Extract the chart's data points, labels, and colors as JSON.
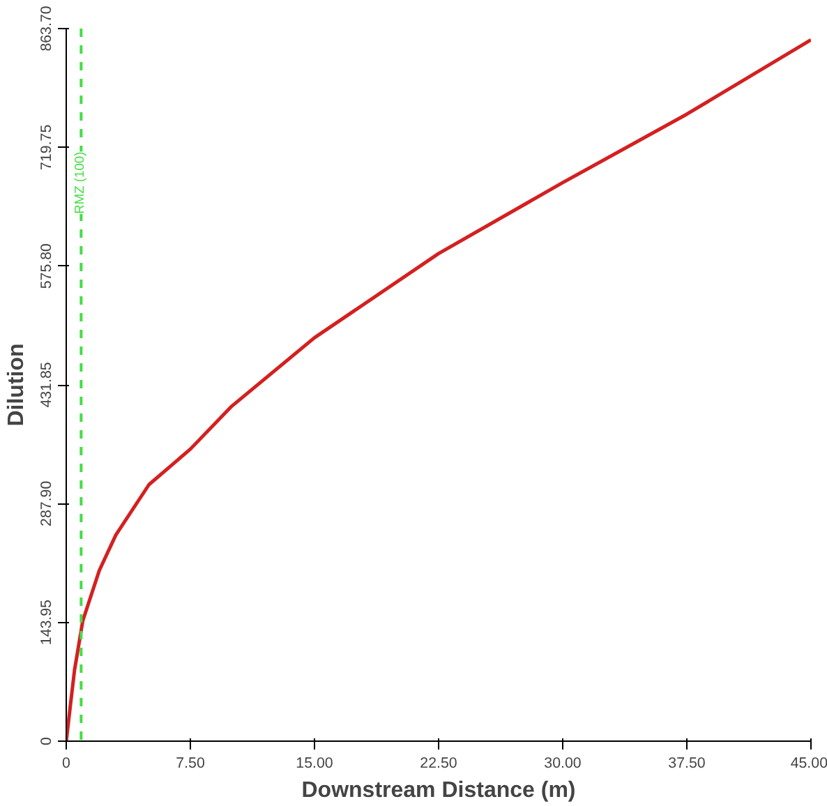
{
  "chart_data": {
    "type": "line",
    "xlabel": "Downstream Distance (m)",
    "ylabel": "Dilution",
    "x": [
      0,
      0.3,
      0.5,
      1,
      2,
      3,
      5,
      7.5,
      10,
      15,
      22.5,
      30,
      37.5,
      45
    ],
    "series": [
      {
        "color": "#d42020",
        "values": [
          0,
          52,
          86,
          146,
          207,
          250,
          311,
          354,
          406,
          489,
          591,
          677,
          760,
          850
        ]
      }
    ],
    "xlim": [
      0,
      45
    ],
    "ylim": [
      0,
      863.7
    ],
    "xticks": [
      0,
      {
        "value": 7.5,
        "label": "7.50"
      },
      {
        "value": 15,
        "label": "15.00"
      },
      {
        "value": 22.5,
        "label": "22.50"
      },
      {
        "value": 30,
        "label": "30.00"
      },
      {
        "value": 37.5,
        "label": "37.50"
      },
      {
        "value": 45,
        "label": "45.00"
      }
    ],
    "yticks": [
      0,
      {
        "value": 143.95,
        "label": "143.95"
      },
      {
        "value": 287.9,
        "label": "287.90"
      },
      {
        "value": 431.85,
        "label": "431.85"
      },
      {
        "value": 575.8,
        "label": "575.80"
      },
      {
        "value": 719.75,
        "label": "719.75"
      },
      {
        "value": 863.7,
        "label": "863.70"
      }
    ],
    "ref_lines": [
      {
        "axis": "x",
        "value": 0.9,
        "label": "RMZ (100)",
        "color": "#44dd44",
        "line_style": "dashed"
      }
    ],
    "grid": false,
    "marker": "none",
    "line_style": "solid"
  }
}
